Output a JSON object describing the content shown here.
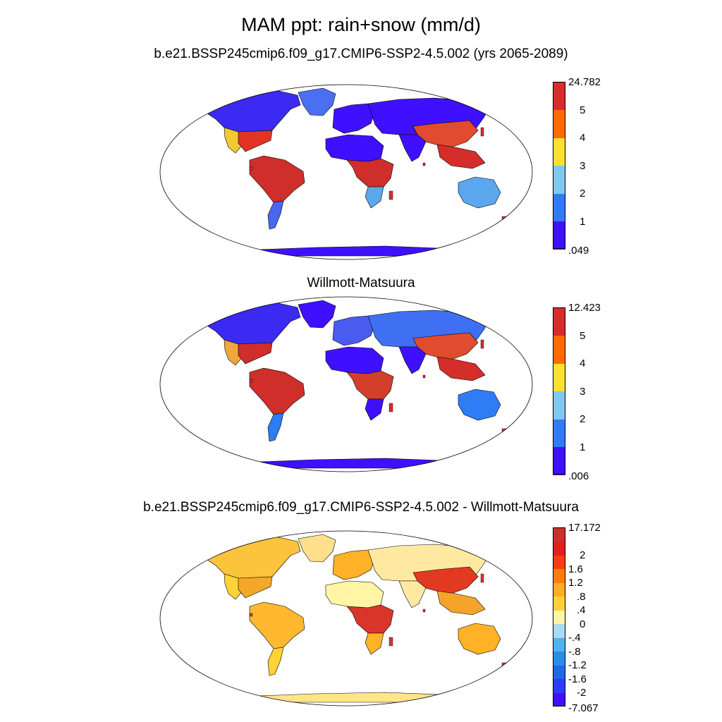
{
  "title": "MAM ppt: rain+snow (mm/d)",
  "panels": [
    {
      "id": "p1",
      "subtitle": "b.e21.BSSP245cmip6.f09_g17.CMIP6-SSP2-4.5.002 (yrs 2065-2089)",
      "colorbar": {
        "colors": [
          "#3f10ff",
          "#2e7cf6",
          "#7fc9ef",
          "#fde032",
          "#fe6a00",
          "#d42d2a"
        ],
        "labels": [
          ".049",
          "1",
          "2",
          "3",
          "4",
          "5",
          "24.782"
        ]
      },
      "regions": {
        "north_america": "#3b2bf2",
        "usa_east": "#e23424",
        "usa_west": "#f3c832",
        "greenland": "#4a6ff2",
        "south_america": "#cf2e2a",
        "patagonia": "#4b66ef",
        "africa_sahara": "#3f10ff",
        "africa_central": "#cf2e2a",
        "africa_south": "#5aa7ee",
        "europe": "#3f10ff",
        "asia": "#3f10ff",
        "east_asia": "#e14c2e",
        "india": "#3f10ff",
        "se_asia": "#d42d2a",
        "australia": "#5aa7ee",
        "antarctica": "#3f10ff"
      }
    },
    {
      "id": "p2",
      "subtitle": "Willmott-Matsuura",
      "colorbar": {
        "colors": [
          "#3f10ff",
          "#2e7cf6",
          "#7fc9ef",
          "#fde032",
          "#fe6a00",
          "#d42d2a"
        ],
        "labels": [
          ".006",
          "1",
          "2",
          "3",
          "4",
          "5",
          "12.423"
        ]
      },
      "regions": {
        "north_america": "#3b2bf2",
        "usa_east": "#cf2e2a",
        "usa_west": "#f0a63a",
        "greenland": "#3f10ff",
        "south_america": "#cf2e2a",
        "patagonia": "#2e7cf6",
        "africa_sahara": "#3f10ff",
        "africa_central": "#d2402b",
        "africa_south": "#3f10ff",
        "europe": "#4a5cf0",
        "asia": "#3f6ff2",
        "east_asia": "#e14c2e",
        "india": "#3f10ff",
        "se_asia": "#d42d2a",
        "australia": "#2e7cf6",
        "antarctica": "#3f10ff"
      }
    },
    {
      "id": "p3",
      "subtitle": "b.e21.BSSP245cmip6.f09_g17.CMIP6-SSP2-4.5.002 - Willmott-Matsuura",
      "colorbar": {
        "colors": [
          "#3f10ff",
          "#2c3cf5",
          "#1f68e9",
          "#2a8ee6",
          "#52b1f0",
          "#a9dbf3",
          "#fff5a5",
          "#ffd237",
          "#ffac25",
          "#ff7d10",
          "#f93d12",
          "#e0201a",
          "#c8322c"
        ],
        "labels": [
          "-7.067",
          "-2",
          "-1.6",
          "-1.2",
          "-.8",
          "-.4",
          "0",
          ".4",
          ".8",
          "1.2",
          "1.6",
          "2",
          "17.172"
        ]
      },
      "regions": {
        "north_america": "#fcc33c",
        "usa_east": "#f4a828",
        "usa_west": "#ffd237",
        "greenland": "#ffe08a",
        "south_america": "#ffb830",
        "patagonia": "#ffd237",
        "africa_sahara": "#fff5a5",
        "africa_central": "#d9352a",
        "africa_south": "#ffb226",
        "europe": "#ffb226",
        "asia": "#ffe9a0",
        "east_asia": "#e23a22",
        "india": "#ffe9a0",
        "se_asia": "#f4a428",
        "australia": "#ffb226",
        "antarctica": "#ffe58a"
      }
    }
  ]
}
